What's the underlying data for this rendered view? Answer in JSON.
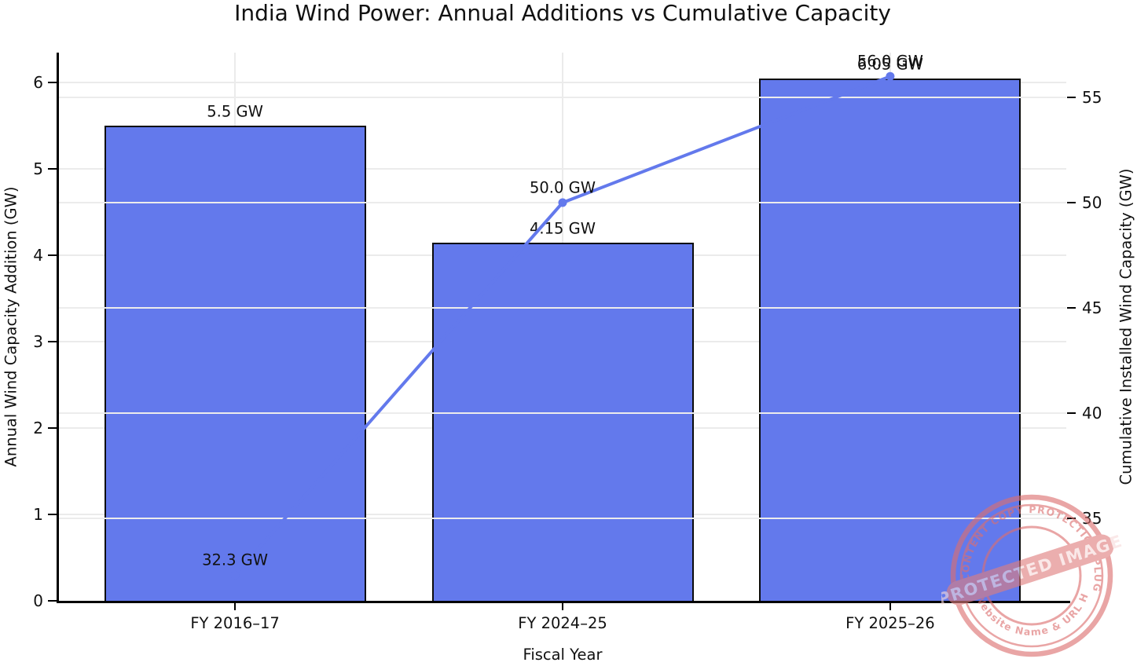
{
  "title": "India Wind Power: Annual Additions vs Cumulative Capacity",
  "chart_data": {
    "type": "bar+line",
    "categories": [
      "FY 2016–17",
      "FY 2024–25",
      "FY 2025–26"
    ],
    "series": [
      {
        "name": "Annual Wind Capacity Addition",
        "type": "bar",
        "axis": "left",
        "values": [
          5.5,
          4.15,
          6.05
        ],
        "labels": [
          "5.5 GW",
          "4.15 GW",
          "6.05 GW"
        ],
        "color": "#6379EC",
        "edge_color": "#0b0b0b"
      },
      {
        "name": "Cumulative Installed Wind Capacity",
        "type": "line",
        "axis": "right",
        "values": [
          32.3,
          50.0,
          56.0
        ],
        "labels": [
          "32.3 GW",
          "50.0 GW",
          "56.0 GW"
        ],
        "color": "#6379EC"
      }
    ],
    "xlabel": "Fiscal Year",
    "ylabel_left": "Annual Wind Capacity Addition (GW)",
    "ylabel_right": "Cumulative Installed Wind Capacity (GW)",
    "yticks_left": [
      0,
      1,
      2,
      3,
      4,
      5,
      6
    ],
    "yticks_right": [
      35,
      40,
      45,
      50,
      55
    ],
    "ylim_left": [
      0,
      6.35
    ],
    "ylim_right": [
      31.1,
      57.1
    ],
    "grid": true,
    "grid_color": "#ebebeb",
    "legend_position": "none"
  },
  "watermark": {
    "arc_top": "WP CONTENT COPY PROTECTION PLUGIN",
    "arc_bottom": "My Website Name & URL Here",
    "banner": "PROTECTED IMAGE",
    "color": "#DC6F6F"
  }
}
